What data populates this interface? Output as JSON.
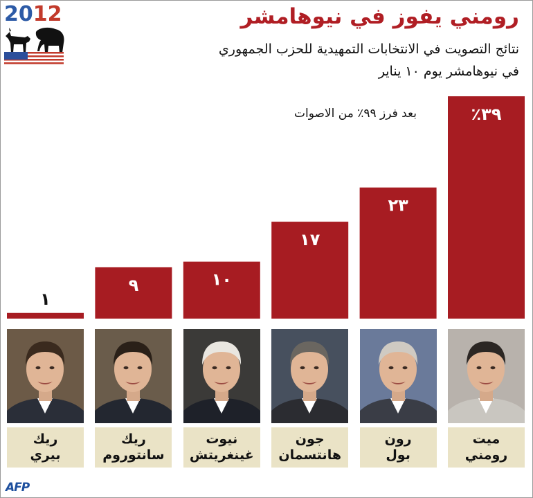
{
  "header": {
    "year_part1": "20",
    "year_part2": "12",
    "title": "رومني يفوز في نيوهامشر",
    "subtitle_line1": "نتائج التصويت في الانتخابات التمهيدية للحزب الجمهوري",
    "subtitle_line2": "في نيوهامشر يوم ١٠ يناير",
    "note": "بعد فرز ٩٩٪ من الاصوات",
    "logo_icon": "donkey-elephant-icon",
    "flag_icon": "us-flag-icon"
  },
  "footer": {
    "credit": "AFP"
  },
  "colors": {
    "bar": "#a71c22",
    "name_box": "#eae3c6",
    "title": "#b01e24",
    "credit": "#1d4f9e"
  },
  "candidates": [
    {
      "first": "ريك",
      "last": "بيري",
      "label": "١"
    },
    {
      "first": "ريك",
      "last": "سانتوروم",
      "label": "٩"
    },
    {
      "first": "نيوت",
      "last": "غينغريتش",
      "label": "١٠"
    },
    {
      "first": "جون",
      "last": "هانتسمان",
      "label": "١٧"
    },
    {
      "first": "رون",
      "last": "بول",
      "label": "٢٣"
    },
    {
      "first": "ميت",
      "last": "رومني",
      "label": "٪٣٩"
    }
  ],
  "chart_data": {
    "type": "bar",
    "categories": [
      "ريك بيري",
      "ريك سانتوروم",
      "نيوت غينغريتش",
      "جون هانتسمان",
      "رون بول",
      "ميت رومني"
    ],
    "values": [
      1,
      9,
      10,
      17,
      23,
      39
    ],
    "unit": "%",
    "ylim": [
      0,
      39
    ],
    "grid": false,
    "legend": "none"
  }
}
